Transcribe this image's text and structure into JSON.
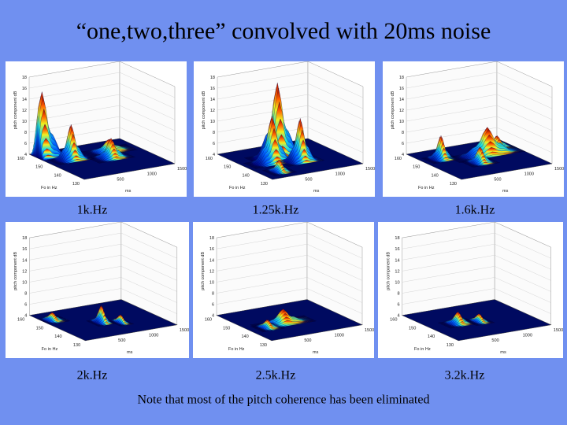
{
  "title": "“one,two,three” convolved with 20ms noise",
  "plot_axes": {
    "z_label": "pitch component dB",
    "x_label": "Fo in Hz",
    "y_label": "ms",
    "z_ticks": [
      4,
      6,
      8,
      10,
      12,
      14,
      16,
      18
    ],
    "fo_ticks": [
      160,
      150,
      140,
      130
    ],
    "ms_ticks": [
      500,
      1000,
      1500
    ]
  },
  "panels": [
    {
      "caption": "1k.Hz"
    },
    {
      "caption": "1.25k.Hz"
    },
    {
      "caption": "1.6k.Hz"
    },
    {
      "caption": "2k.Hz"
    },
    {
      "caption": "2.5k.Hz"
    },
    {
      "caption": "3.2k.Hz"
    }
  ],
  "note": "Note that most of the pitch coherence has been eliminated"
}
